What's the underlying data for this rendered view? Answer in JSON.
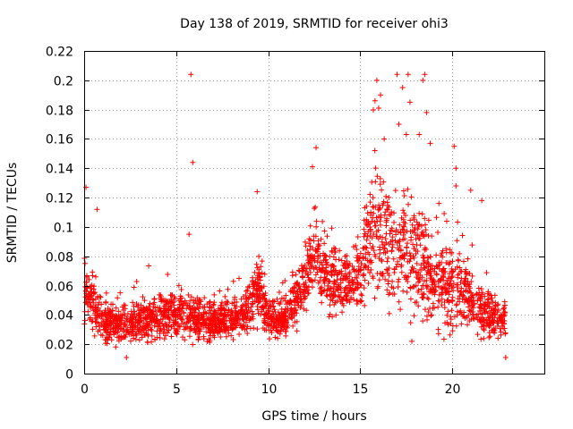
{
  "chart_data": {
    "type": "scatter",
    "title": "Day 138 of 2019, SRMTID for receiver ohi3",
    "xlabel": "GPS time / hours",
    "ylabel": "SRMTID / TECUs",
    "xlim": [
      0,
      25
    ],
    "ylim": [
      0,
      0.22
    ],
    "xticks": [
      "0",
      "5",
      "10",
      "15",
      "20"
    ],
    "yticks": [
      "0",
      "0.02",
      "0.04",
      "0.06",
      "0.08",
      "0.1",
      "0.12",
      "0.14",
      "0.16",
      "0.18",
      "0.2",
      "0.22"
    ],
    "grid": true,
    "marker": "+",
    "color": "#ff0000",
    "x_range_hours": [
      0,
      22.9
    ],
    "profile": [
      {
        "h": 0.0,
        "mid": 0.055,
        "spread": 0.03
      },
      {
        "h": 0.5,
        "mid": 0.045,
        "spread": 0.025
      },
      {
        "h": 1.0,
        "mid": 0.035,
        "spread": 0.02
      },
      {
        "h": 2.0,
        "mid": 0.033,
        "spread": 0.018
      },
      {
        "h": 3.0,
        "mid": 0.036,
        "spread": 0.02
      },
      {
        "h": 4.0,
        "mid": 0.038,
        "spread": 0.02
      },
      {
        "h": 5.0,
        "mid": 0.04,
        "spread": 0.02
      },
      {
        "h": 6.0,
        "mid": 0.038,
        "spread": 0.02
      },
      {
        "h": 7.0,
        "mid": 0.035,
        "spread": 0.018
      },
      {
        "h": 8.0,
        "mid": 0.036,
        "spread": 0.018
      },
      {
        "h": 9.0,
        "mid": 0.045,
        "spread": 0.022
      },
      {
        "h": 9.5,
        "mid": 0.06,
        "spread": 0.03
      },
      {
        "h": 10.0,
        "mid": 0.037,
        "spread": 0.018
      },
      {
        "h": 11.0,
        "mid": 0.037,
        "spread": 0.018
      },
      {
        "h": 12.0,
        "mid": 0.06,
        "spread": 0.032
      },
      {
        "h": 12.5,
        "mid": 0.085,
        "spread": 0.04
      },
      {
        "h": 13.0,
        "mid": 0.07,
        "spread": 0.035
      },
      {
        "h": 14.0,
        "mid": 0.06,
        "spread": 0.03
      },
      {
        "h": 15.0,
        "mid": 0.07,
        "spread": 0.035
      },
      {
        "h": 15.8,
        "mid": 0.1,
        "spread": 0.06
      },
      {
        "h": 16.5,
        "mid": 0.085,
        "spread": 0.055
      },
      {
        "h": 17.5,
        "mid": 0.08,
        "spread": 0.05
      },
      {
        "h": 18.5,
        "mid": 0.075,
        "spread": 0.05
      },
      {
        "h": 19.0,
        "mid": 0.06,
        "spread": 0.035
      },
      {
        "h": 20.0,
        "mid": 0.06,
        "spread": 0.04
      },
      {
        "h": 21.0,
        "mid": 0.05,
        "spread": 0.03
      },
      {
        "h": 22.0,
        "mid": 0.04,
        "spread": 0.02
      },
      {
        "h": 22.9,
        "mid": 0.035,
        "spread": 0.018
      }
    ],
    "outliers": [
      {
        "x": 0.1,
        "y": 0.127
      },
      {
        "x": 0.7,
        "y": 0.112
      },
      {
        "x": 5.8,
        "y": 0.204
      },
      {
        "x": 5.9,
        "y": 0.144
      },
      {
        "x": 5.7,
        "y": 0.095
      },
      {
        "x": 9.4,
        "y": 0.124
      },
      {
        "x": 12.6,
        "y": 0.154
      },
      {
        "x": 12.4,
        "y": 0.141
      },
      {
        "x": 15.9,
        "y": 0.2
      },
      {
        "x": 16.1,
        "y": 0.19
      },
      {
        "x": 16.0,
        "y": 0.181
      },
      {
        "x": 15.8,
        "y": 0.186
      },
      {
        "x": 16.3,
        "y": 0.16
      },
      {
        "x": 17.0,
        "y": 0.204
      },
      {
        "x": 17.6,
        "y": 0.204
      },
      {
        "x": 18.5,
        "y": 0.204
      },
      {
        "x": 18.4,
        "y": 0.2
      },
      {
        "x": 17.3,
        "y": 0.195
      },
      {
        "x": 17.7,
        "y": 0.185
      },
      {
        "x": 18.6,
        "y": 0.178
      },
      {
        "x": 17.1,
        "y": 0.17
      },
      {
        "x": 17.5,
        "y": 0.163
      },
      {
        "x": 18.2,
        "y": 0.163
      },
      {
        "x": 18.8,
        "y": 0.157
      },
      {
        "x": 20.1,
        "y": 0.155
      },
      {
        "x": 20.2,
        "y": 0.14
      },
      {
        "x": 20.2,
        "y": 0.128
      },
      {
        "x": 21.0,
        "y": 0.125
      },
      {
        "x": 21.6,
        "y": 0.118
      },
      {
        "x": 17.8,
        "y": 0.022
      },
      {
        "x": 2.3,
        "y": 0.011
      },
      {
        "x": 22.9,
        "y": 0.011
      }
    ]
  }
}
